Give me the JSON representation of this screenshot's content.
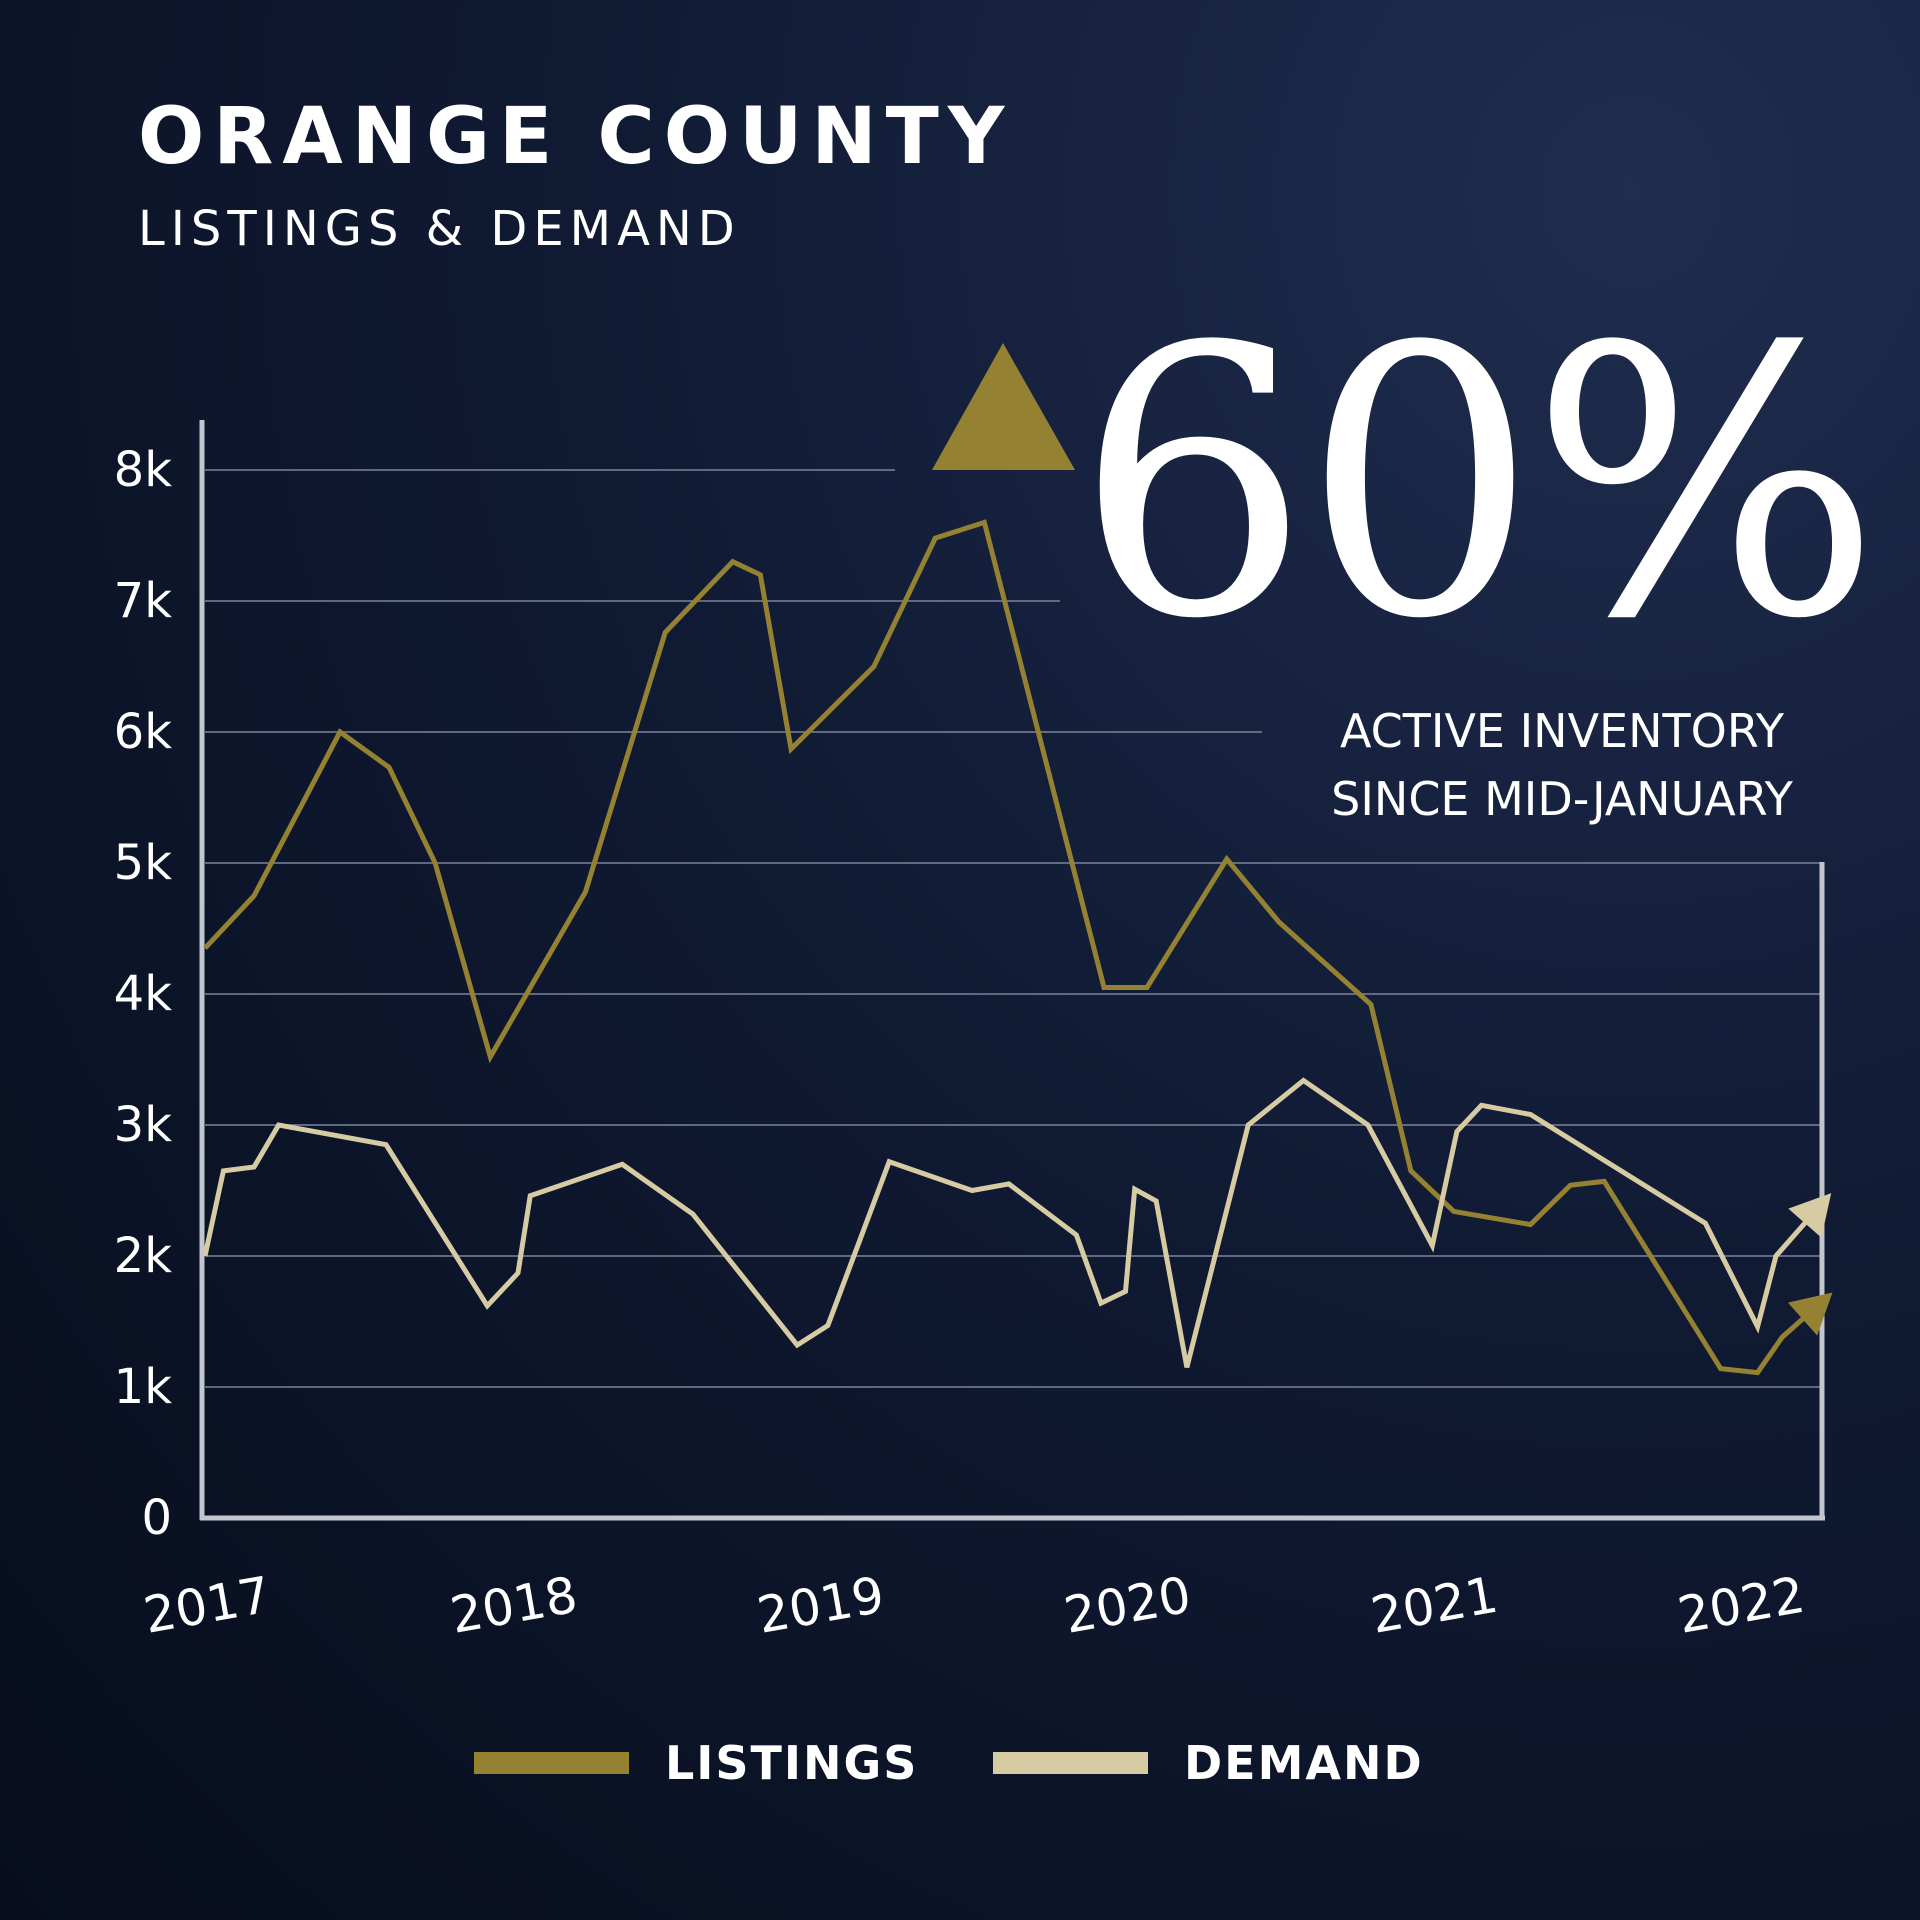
{
  "title": "ORANGE COUNTY",
  "subtitle": "LISTINGS & DEMAND",
  "annotation": {
    "value": "60%",
    "lines": [
      "ACTIVE INVENTORY",
      "SINCE MID-JANUARY"
    ],
    "icon": "up-triangle-icon"
  },
  "colors": {
    "listings": "#948232",
    "demand": "#d7cba3",
    "axis": "#c3c6cf",
    "grid": "#7c8399"
  },
  "legend": [
    {
      "label": "LISTINGS",
      "series": "Listings"
    },
    {
      "label": "DEMAND",
      "series": "Demand"
    }
  ],
  "chart_data": {
    "type": "line",
    "title": "ORANGE COUNTY",
    "subtitle": "LISTINGS & DEMAND",
    "xlabel": "",
    "ylabel": "",
    "xlim": [
      2017,
      2022.27
    ],
    "ylim": [
      0,
      8000
    ],
    "x_ticks": [
      2017,
      2018,
      2019,
      2020,
      2021,
      2022
    ],
    "x_tick_labels": [
      "2017",
      "2018",
      "2019",
      "2020",
      "2021",
      "2022"
    ],
    "y_ticks": [
      0,
      1000,
      2000,
      3000,
      4000,
      5000,
      6000,
      7000,
      8000
    ],
    "y_tick_labels": [
      "0",
      "1k",
      "2k",
      "3k",
      "4k",
      "5k",
      "6k",
      "7k",
      "8k"
    ],
    "grid": true,
    "legend_position": "bottom",
    "series": [
      {
        "name": "Listings",
        "x": [
          2017.0,
          2017.16,
          2017.44,
          2017.6,
          2017.75,
          2017.93,
          2018.24,
          2018.5,
          2018.72,
          2018.81,
          2018.91,
          2019.18,
          2019.38,
          2019.54,
          2019.93,
          2020.07,
          2020.33,
          2020.5,
          2020.8,
          2020.93,
          2021.07,
          2021.32,
          2021.45,
          2021.56,
          2021.94,
          2022.06,
          2022.14,
          2022.27
        ],
        "values": [
          4350,
          4750,
          6000,
          5730,
          5000,
          3520,
          4780,
          6760,
          7300,
          7200,
          5870,
          6500,
          7480,
          7600,
          4050,
          4050,
          5030,
          4550,
          3920,
          2650,
          2340,
          2240,
          2540,
          2570,
          1140,
          1110,
          1380,
          1650
        ]
      },
      {
        "name": "Demand",
        "x": [
          2017.0,
          2017.06,
          2017.16,
          2017.24,
          2017.59,
          2017.92,
          2018.02,
          2018.06,
          2018.36,
          2018.59,
          2018.93,
          2019.03,
          2019.23,
          2019.5,
          2019.62,
          2019.84,
          2019.92,
          2020.0,
          2020.03,
          2020.1,
          2020.2,
          2020.4,
          2020.58,
          2020.79,
          2021.0,
          2021.08,
          2021.16,
          2021.32,
          2021.89,
          2022.06,
          2022.12,
          2022.27
        ],
        "values": [
          2000,
          2650,
          2680,
          3000,
          2850,
          1620,
          1870,
          2460,
          2700,
          2320,
          1320,
          1470,
          2720,
          2500,
          2550,
          2160,
          1640,
          1730,
          2510,
          2420,
          1150,
          3000,
          3340,
          3000,
          2080,
          2950,
          3150,
          3080,
          2250,
          1460,
          2000,
          2400
        ]
      }
    ]
  }
}
